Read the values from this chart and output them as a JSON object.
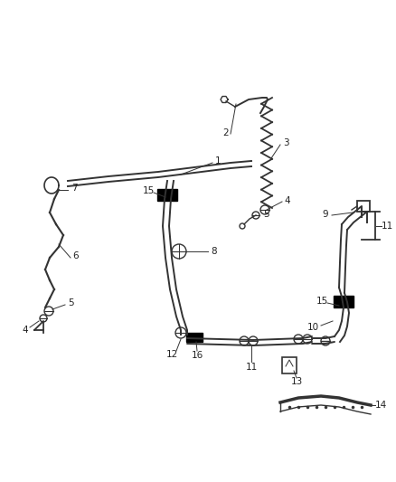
{
  "bg_color": "#ffffff",
  "line_color": "#333333",
  "label_color": "#222222",
  "figsize": [
    4.38,
    5.33
  ],
  "dpi": 100
}
